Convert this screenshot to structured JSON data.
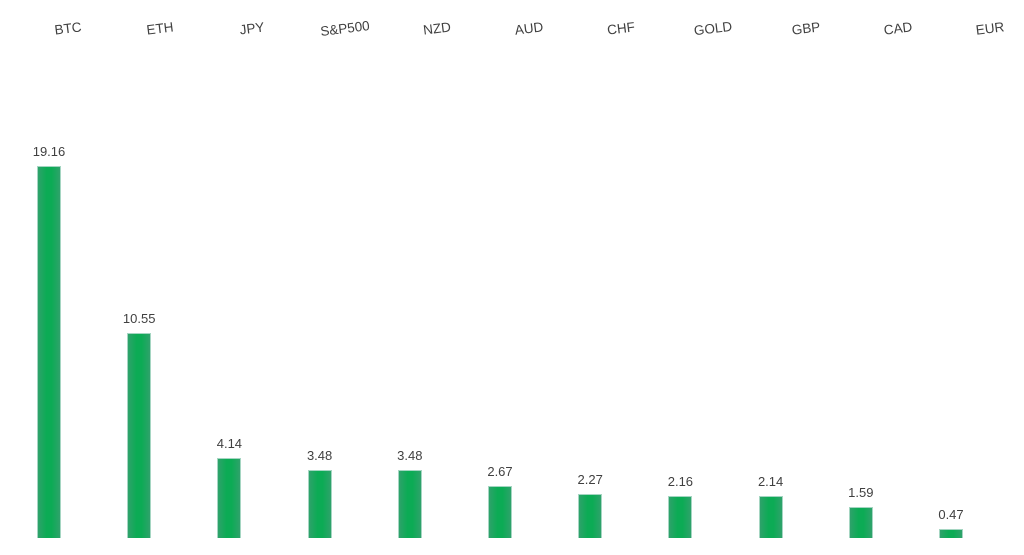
{
  "chart_data": {
    "type": "bar",
    "title": "",
    "xlabel": "",
    "ylabel": "",
    "categories": [
      "BTC",
      "ETH",
      "JPY",
      "S&P500",
      "NZD",
      "AUD",
      "CHF",
      "GOLD",
      "GBP",
      "CAD",
      "EUR"
    ],
    "values": [
      19.16,
      10.55,
      4.14,
      3.48,
      3.48,
      2.67,
      2.27,
      2.16,
      2.14,
      1.59,
      0.47
    ],
    "value_label_decimals": 2,
    "ylim": [
      0,
      20
    ],
    "grid": false,
    "legend": null,
    "axis_lines": false,
    "category_label_position": "top",
    "category_label_rotation_deg": -7,
    "bar_color": "#0cab55",
    "bar_edge_color": "#a5d6c2",
    "label_color": "#404040",
    "background_color": "#ffffff"
  }
}
